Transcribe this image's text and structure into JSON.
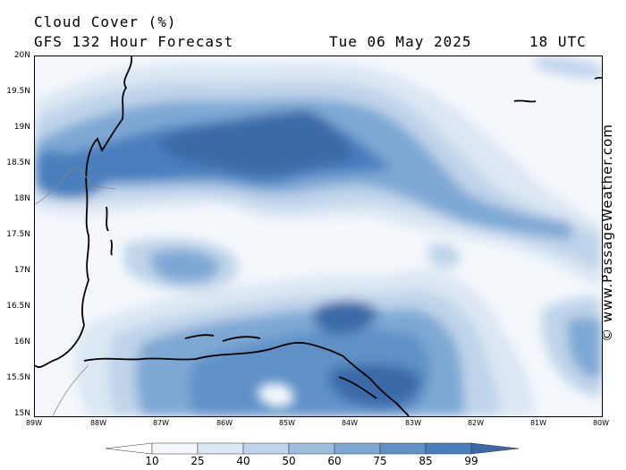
{
  "header": {
    "title": "Cloud Cover (%)",
    "subtitle": "GFS 132 Hour Forecast",
    "date": "Tue 06 May 2025",
    "time": "18 UTC"
  },
  "credit": "© www.PassageWeather.com",
  "map": {
    "lat_labels": [
      "20N",
      "19.5N",
      "19N",
      "18.5N",
      "18N",
      "17.5N",
      "17N",
      "16.5N",
      "16N",
      "15.5N",
      "15N"
    ],
    "lon_labels": [
      "89W",
      "88W",
      "87W",
      "86W",
      "85W",
      "84W",
      "83W",
      "82W",
      "81W",
      "80W"
    ],
    "extent": {
      "lon_min": -89,
      "lon_max": -80,
      "lat_min": 15,
      "lat_max": 20
    },
    "colors": {
      "c10": "#f4f8fc",
      "c25": "#dbe7f3",
      "c40": "#bfd4ea",
      "c50": "#9dbddf",
      "c60": "#7ea8d4",
      "c75": "#5f91c7",
      "c85": "#4a7fbd",
      "c99": "#3b6aa8"
    }
  },
  "colorbar": {
    "labels": [
      "10",
      "25",
      "40",
      "50",
      "60",
      "75",
      "85",
      "99"
    ],
    "colors": [
      "#ffffff",
      "#f4f8fc",
      "#dbe7f3",
      "#bfd4ea",
      "#9dbddf",
      "#7ea8d4",
      "#5f91c7",
      "#4a7fbd",
      "#3b6aa8"
    ]
  }
}
